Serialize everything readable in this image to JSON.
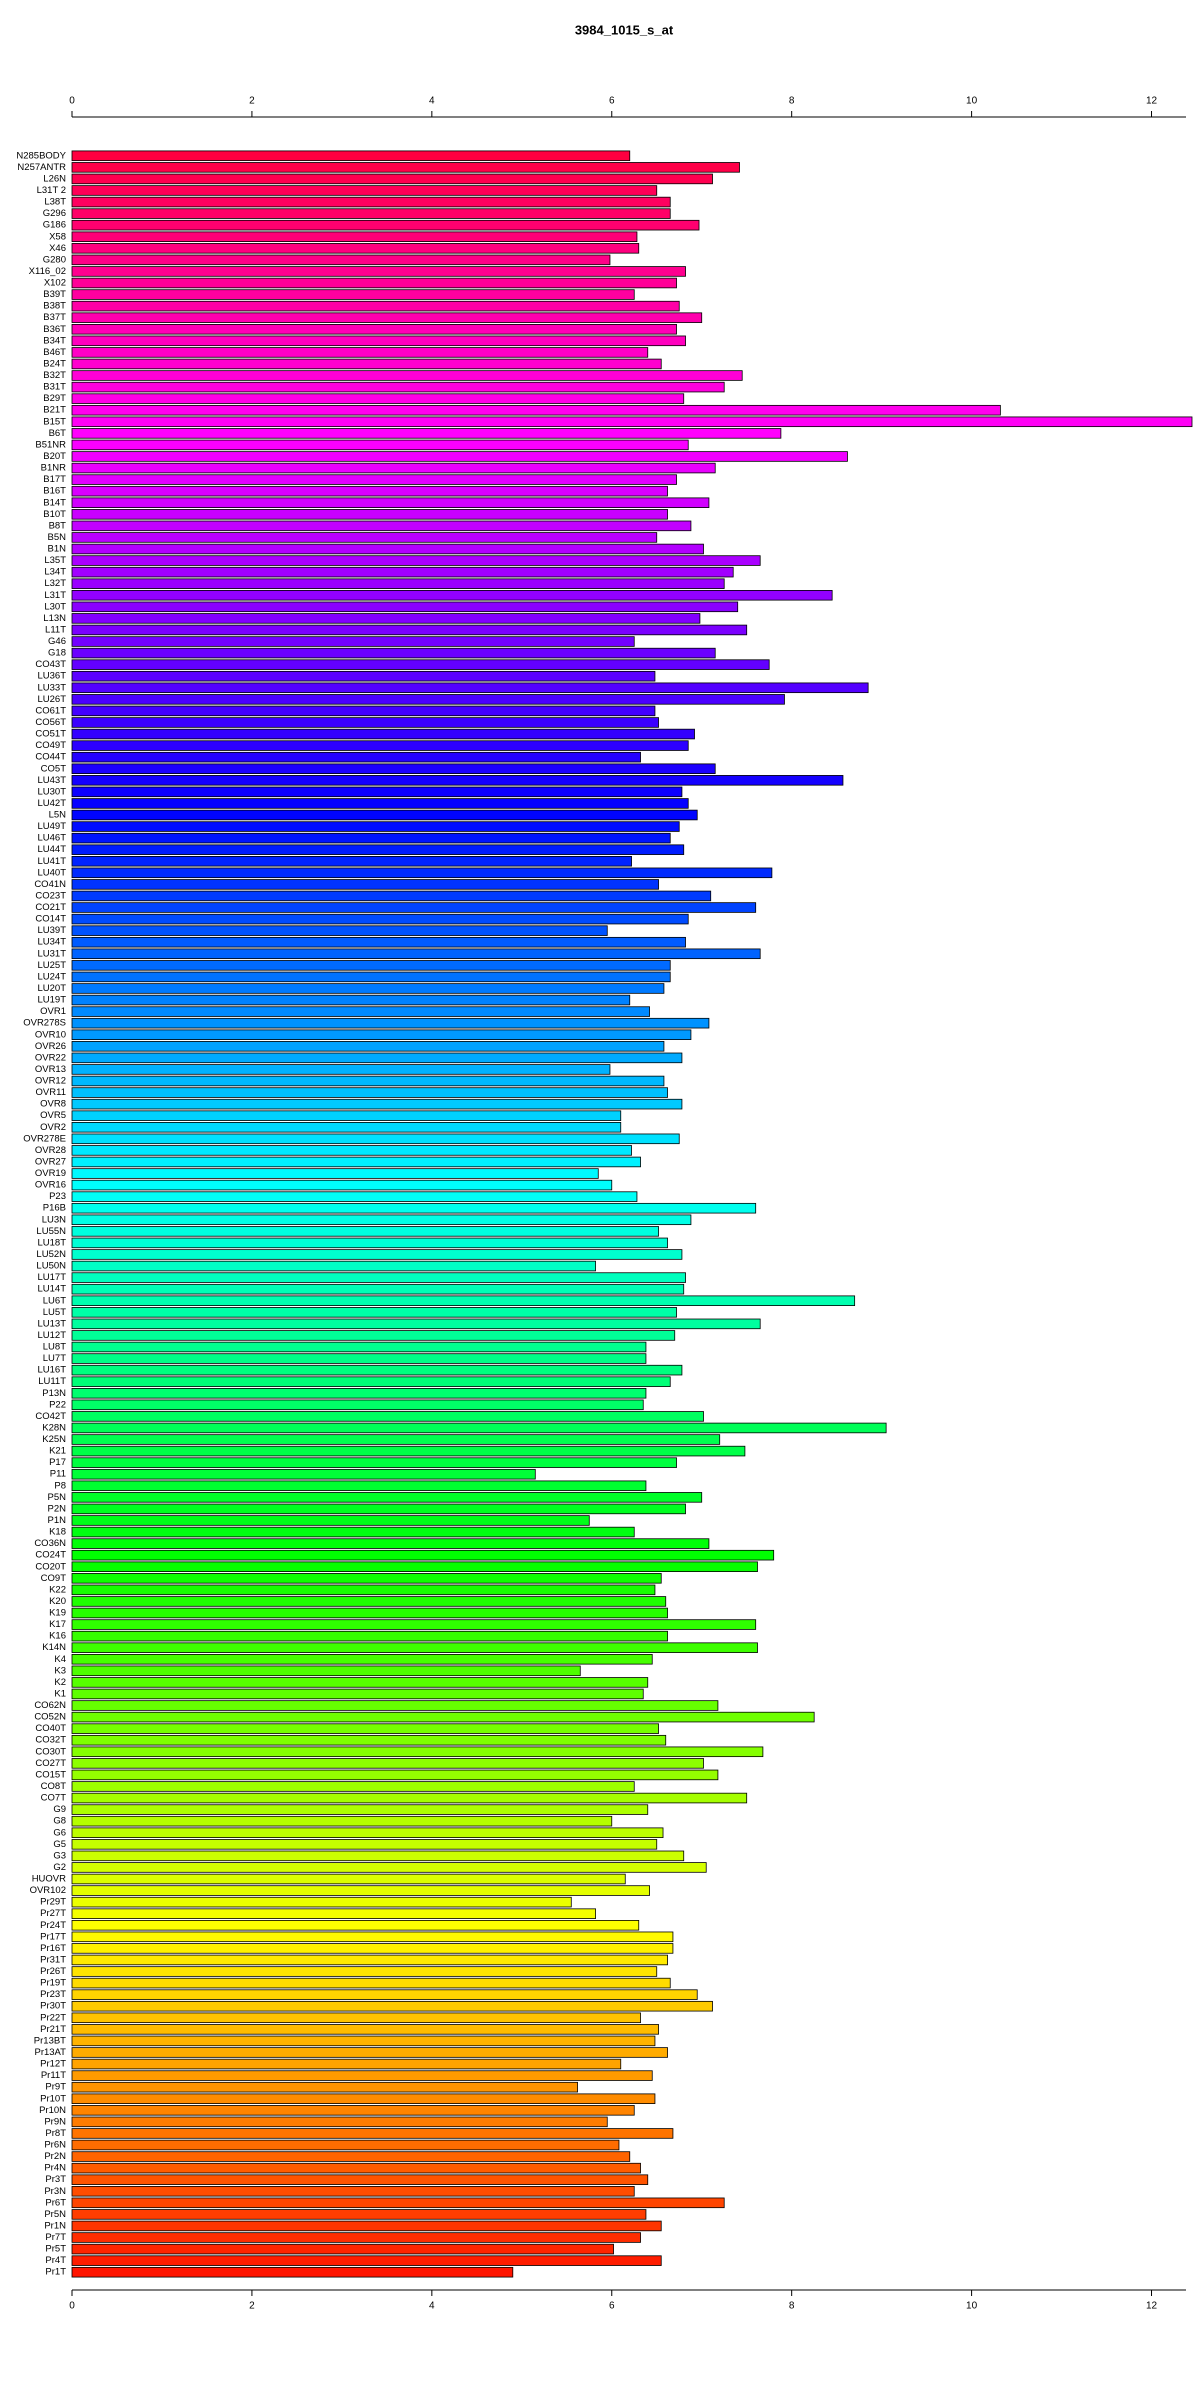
{
  "chart_data": {
    "type": "bar",
    "orientation": "horizontal",
    "title": "3984_1015_s_at",
    "categories": [
      "N285BODY",
      "N257ANTR",
      "L26N",
      "L31T 2",
      "L38T",
      "G296",
      "G186",
      "X58",
      "X46",
      "G280",
      "X116_02",
      "X102",
      "B39T",
      "B38T",
      "B37T",
      "B36T",
      "B34T",
      "B46T",
      "B24T",
      "B32T",
      "B31T",
      "B29T",
      "B21T",
      "B15T",
      "B6T",
      "B51NR",
      "B20T",
      "B1NR",
      "B17T",
      "B16T",
      "B14T",
      "B10T",
      "B8T",
      "B5N",
      "B1N",
      "L35T",
      "L34T",
      "L32T",
      "L31T",
      "L30T",
      "L13N",
      "L11T",
      "G46",
      "G18",
      "CO43T",
      "LU36T",
      "LU33T",
      "LU26T",
      "CO61T",
      "CO56T",
      "CO51T",
      "CO49T",
      "CO44T",
      "CO5T",
      "LU43T",
      "LU30T",
      "LU42T",
      "L5N",
      "LU49T",
      "LU46T",
      "LU44T",
      "LU41T",
      "LU40T",
      "CO41N",
      "CO23T",
      "CO21T",
      "CO14T",
      "LU39T",
      "LU34T",
      "LU31T",
      "LU25T",
      "LU24T",
      "LU20T",
      "LU19T",
      "OVR1",
      "OVR278S",
      "OVR10",
      "OVR26",
      "OVR22",
      "OVR13",
      "OVR12",
      "OVR11",
      "OVR8",
      "OVR5",
      "OVR2",
      "OVR278E",
      "OVR28",
      "OVR27",
      "OVR19",
      "OVR16",
      "P23",
      "P16B",
      "LU3N",
      "LU55N",
      "LU18T",
      "LU52N",
      "LU50N",
      "LU17T",
      "LU14T",
      "LU6T",
      "LU5T",
      "LU13T",
      "LU12T",
      "LU8T",
      "LU7T",
      "LU16T",
      "LU11T",
      "P13N",
      "P22",
      "CO42T",
      "K28N",
      "K25N",
      "K21",
      "P17",
      "P11",
      "P8",
      "P5N",
      "P2N",
      "P1N",
      "K18",
      "CO36N",
      "CO24T",
      "CO20T",
      "CO9T",
      "K22",
      "K20",
      "K19",
      "K17",
      "K16",
      "K14N",
      "K4",
      "K3",
      "K2",
      "K1",
      "CO62N",
      "CO52N",
      "CO40T",
      "CO32T",
      "CO30T",
      "CO27T",
      "CO15T",
      "CO8T",
      "CO7T",
      "G9",
      "G8",
      "G6",
      "G5",
      "G3",
      "G2",
      "HUOVR",
      "OVR102",
      "Pr29T",
      "Pr27T",
      "Pr24T",
      "Pr17T",
      "Pr16T",
      "Pr31T",
      "Pr26T",
      "Pr19T",
      "Pr23T",
      "Pr30T",
      "Pr22T",
      "Pr21T",
      "Pr13BT",
      "Pr13AT",
      "Pr12T",
      "Pr11T",
      "Pr9T",
      "Pr10T",
      "Pr10N",
      "Pr9N",
      "Pr8T",
      "Pr6N",
      "Pr2N",
      "Pr4N",
      "Pr3T",
      "Pr3N",
      "Pr6T",
      "Pr5N",
      "Pr1N",
      "Pr7T",
      "Pr5T",
      "Pr4T",
      "Pr1T"
    ],
    "values": [
      6.2,
      7.42,
      7.12,
      6.5,
      6.65,
      6.65,
      6.97,
      6.28,
      6.3,
      5.98,
      6.82,
      6.72,
      6.25,
      6.75,
      7.0,
      6.72,
      6.82,
      6.4,
      6.55,
      7.45,
      7.25,
      6.8,
      10.32,
      12.45,
      7.88,
      6.85,
      8.62,
      7.15,
      6.72,
      6.62,
      7.08,
      6.62,
      6.88,
      6.5,
      7.02,
      7.65,
      7.35,
      7.25,
      8.45,
      7.4,
      6.98,
      7.5,
      6.25,
      7.15,
      7.75,
      6.48,
      8.85,
      7.92,
      6.48,
      6.52,
      6.92,
      6.85,
      6.32,
      7.15,
      8.57,
      6.78,
      6.85,
      6.95,
      6.75,
      6.65,
      6.8,
      6.22,
      7.78,
      6.52,
      7.1,
      7.6,
      6.85,
      5.95,
      6.82,
      7.65,
      6.65,
      6.65,
      6.58,
      6.2,
      6.42,
      7.08,
      6.88,
      6.58,
      6.78,
      5.98,
      6.58,
      6.62,
      6.78,
      6.1,
      6.1,
      6.75,
      6.22,
      6.32,
      5.85,
      6.0,
      6.28,
      7.6,
      6.88,
      6.52,
      6.62,
      6.78,
      5.82,
      6.82,
      6.8,
      8.7,
      6.72,
      7.65,
      6.7,
      6.38,
      6.38,
      6.78,
      6.65,
      6.38,
      6.35,
      7.02,
      9.05,
      7.2,
      7.48,
      6.72,
      5.15,
      6.38,
      7.0,
      6.82,
      5.75,
      6.25,
      7.08,
      7.8,
      7.62,
      6.55,
      6.48,
      6.6,
      6.62,
      7.6,
      6.62,
      7.62,
      6.45,
      5.65,
      6.4,
      6.35,
      7.18,
      8.25,
      6.52,
      6.6,
      7.68,
      7.02,
      7.18,
      6.25,
      7.5,
      6.4,
      6.0,
      6.57,
      6.5,
      6.8,
      7.05,
      6.15,
      6.42,
      5.55,
      5.82,
      6.3,
      6.68,
      6.68,
      6.62,
      6.5,
      6.65,
      6.95,
      7.12,
      6.32,
      6.52,
      6.48,
      6.62,
      6.1,
      6.45,
      5.62,
      6.48,
      6.25,
      5.95,
      6.68,
      6.08,
      6.2,
      6.32,
      6.4,
      6.25,
      7.25,
      6.38,
      6.55,
      6.32,
      6.02,
      6.55,
      4.9
    ],
    "color_scale": "rainbow",
    "xlim": [
      0,
      12.45
    ],
    "xticks": [
      0,
      2,
      4,
      6,
      8,
      10,
      12
    ]
  }
}
